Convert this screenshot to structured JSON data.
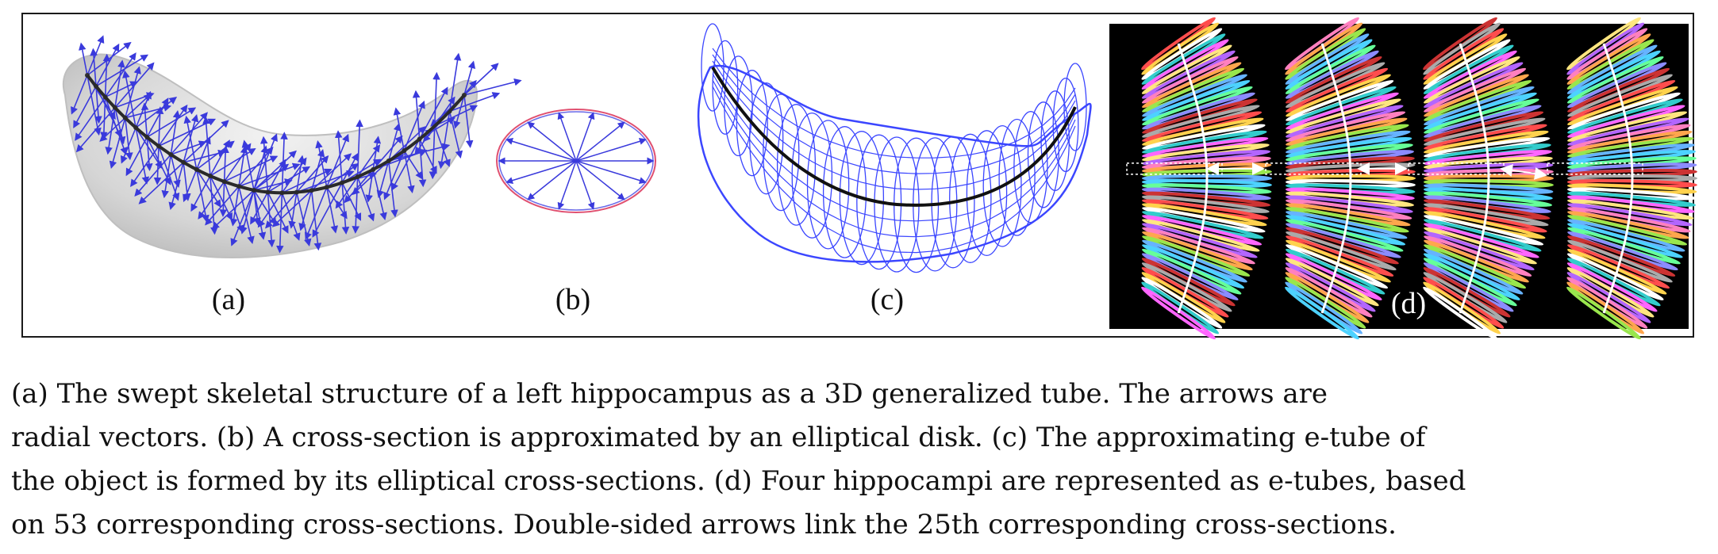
{
  "figure": {
    "panels": [
      {
        "id": "a",
        "label": "(a)"
      },
      {
        "id": "b",
        "label": "(b)"
      },
      {
        "id": "c",
        "label": "(c)"
      },
      {
        "id": "d",
        "label": "(d)"
      }
    ],
    "colors": {
      "vector_blue": "#3a3adc",
      "mesh_blue": "#3b46ff",
      "skeleton": "#111111",
      "surface_gray": "#d4d4d4",
      "ellipse_red": "#e05070",
      "panel_d_background": "#000000"
    }
  },
  "caption": {
    "lines": [
      "(a) The swept skeletal structure of a left hippocampus as a 3D generalized tube. The arrows are",
      "radial vectors. (b) A cross-section is approximated by an elliptical disk. (c) The approximating e-tube of",
      "the object is formed by its elliptical cross-sections. (d) Four hippocampi are represented as e-tubes, based",
      "on 53 corresponding cross-sections. Double-sided arrows link the 25th corresponding cross-sections."
    ]
  }
}
